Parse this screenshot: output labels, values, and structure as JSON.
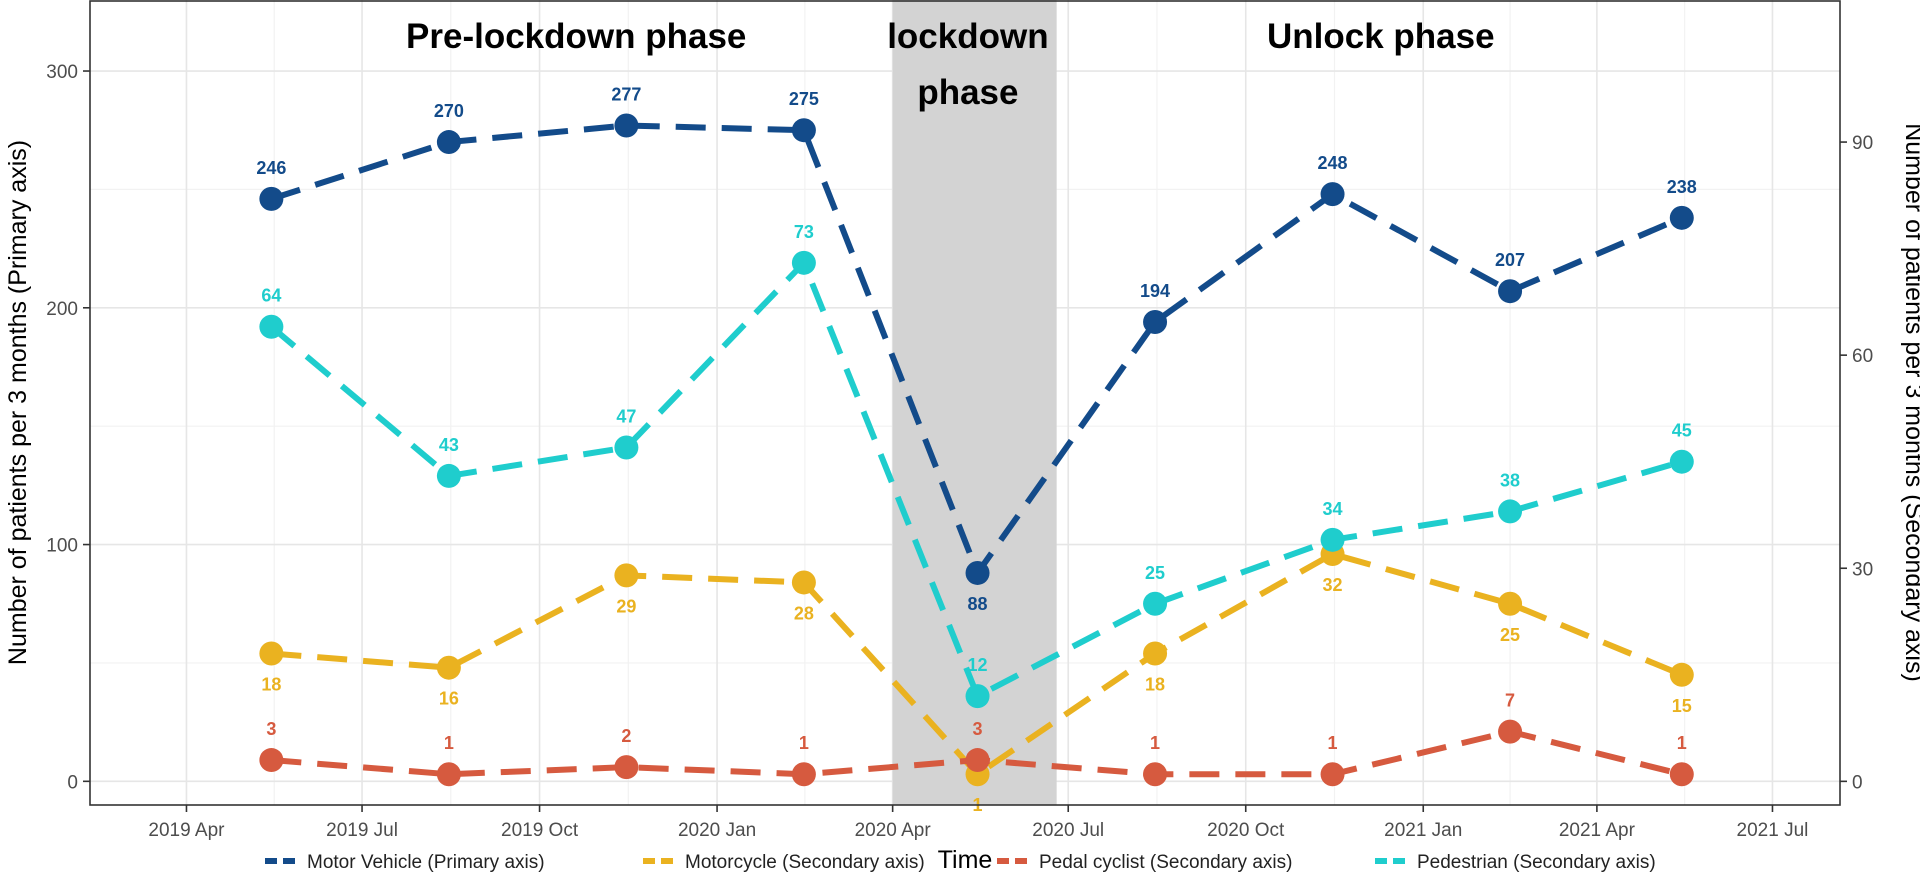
{
  "chart_data": {
    "type": "line",
    "x": [
      "2019-05-15",
      "2019-08-15",
      "2019-11-15",
      "2020-02-15",
      "2020-05-15",
      "2020-08-15",
      "2020-11-15",
      "2021-02-15",
      "2021-05-15"
    ],
    "x_ticks": [
      "2019-04-01",
      "2019-07-01",
      "2019-10-01",
      "2020-01-01",
      "2020-04-01",
      "2020-07-01",
      "2020-10-01",
      "2021-01-01",
      "2021-04-01",
      "2021-07-01"
    ],
    "x_tick_labels": [
      "2019 Apr",
      "2019 Jul",
      "2019 Oct",
      "2020 Jan",
      "2020 Apr",
      "2020 Jul",
      "2020 Oct",
      "2021 Jan",
      "2021 Apr",
      "2021 Jul"
    ],
    "xlim": [
      "2019-02-10",
      "2021-08-05"
    ],
    "xlabel": "Time",
    "ylabel": "Number of patients per 3 months (Primary axis)",
    "ylabel_secondary": "Number of patients per 3 months (Secondary axis)",
    "ylim": [
      -10,
      330
    ],
    "ylim_secondary": [
      -3.33,
      110
    ],
    "yticks": [
      0,
      100,
      200,
      300
    ],
    "yticks_secondary": [
      0,
      30,
      60,
      90
    ],
    "grid": true,
    "legend_position": "bottom",
    "phases": [
      {
        "label_lines": [
          "Pre-lockdown phase"
        ],
        "center": "2019-10-20"
      },
      {
        "label_lines": [
          "lockdown",
          "phase"
        ],
        "center": "2020-05-10",
        "shaded": true,
        "start": "2020-04-01",
        "end": "2020-06-25",
        "color": "#d3d3d3"
      },
      {
        "label_lines": [
          "Unlock phase"
        ],
        "center": "2020-12-10"
      }
    ],
    "series": [
      {
        "name": "Motor Vehicle (Primary axis)",
        "axis": "primary",
        "color": "#134b8a",
        "values": [
          246,
          270,
          277,
          275,
          88,
          194,
          248,
          207,
          238
        ]
      },
      {
        "name": "Motorcycle (Secondary axis)",
        "axis": "secondary",
        "color": "#eab220",
        "values": [
          18,
          16,
          29,
          28,
          1,
          18,
          32,
          25,
          15
        ]
      },
      {
        "name": "Pedal cyclist (Secondary axis)",
        "axis": "secondary",
        "color": "#d65a3f",
        "values": [
          3,
          1,
          2,
          1,
          3,
          1,
          1,
          7,
          1
        ]
      },
      {
        "name": "Pedestrian (Secondary axis)",
        "axis": "secondary",
        "color": "#1fcdcd",
        "values": [
          64,
          43,
          47,
          73,
          12,
          25,
          34,
          38,
          45
        ]
      }
    ]
  }
}
